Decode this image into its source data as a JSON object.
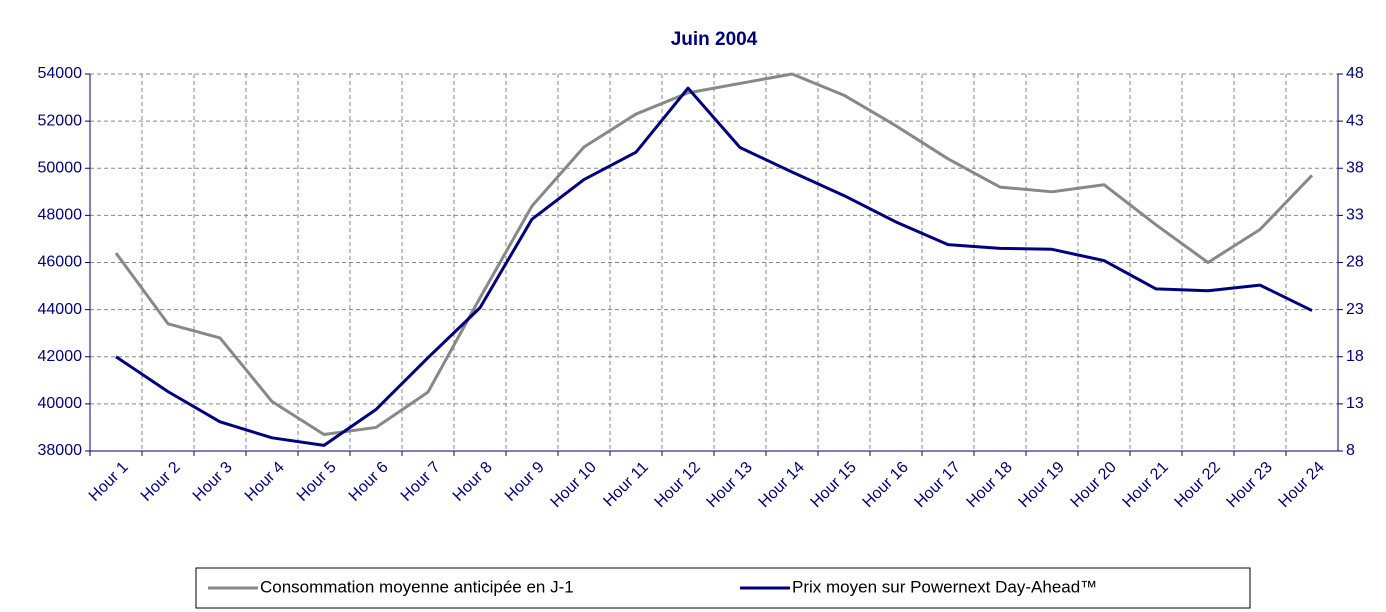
{
  "chart_data": {
    "type": "line",
    "title": "Juin 2004",
    "categories": [
      "Hour 1",
      "Hour 2",
      "Hour 3",
      "Hour 4",
      "Hour 5",
      "Hour 6",
      "Hour 7",
      "Hour 8",
      "Hour 9",
      "Hour 10",
      "Hour 11",
      "Hour 12",
      "Hour 13",
      "Hour 14",
      "Hour 15",
      "Hour 16",
      "Hour 17",
      "Hour 18",
      "Hour 19",
      "Hour 20",
      "Hour 21",
      "Hour 22",
      "Hour 23",
      "Hour 24"
    ],
    "series": [
      {
        "name": "Consommation moyenne anticipée en J-1",
        "color": "#888888",
        "axis": "y",
        "values": [
          46400,
          43400,
          42800,
          40100,
          38700,
          39000,
          40500,
          44500,
          48400,
          50900,
          52300,
          53200,
          53600,
          54000,
          53100,
          51800,
          50400,
          49200,
          49000,
          49300,
          47600,
          46000,
          47400,
          49700
        ]
      },
      {
        "name": "Prix moyen sur Powernext Day-Ahead™",
        "color": "#000080",
        "axis": "y2",
        "values": [
          18,
          14.3,
          11.1,
          9.4,
          8.6,
          12.4,
          17.9,
          23.2,
          32.6,
          36.8,
          39.7,
          46.5,
          40.2,
          37.6,
          35.1,
          32.3,
          29.9,
          29.5,
          29.4,
          28.2,
          25.2,
          25,
          25.6,
          22.9
        ]
      }
    ],
    "ylim": [
      38000,
      54000
    ],
    "yticks": [
      38000,
      40000,
      42000,
      44000,
      46000,
      48000,
      50000,
      52000,
      54000
    ],
    "y2lim": [
      8,
      48
    ],
    "y2ticks": [
      8,
      13,
      18,
      23,
      28,
      33,
      38,
      43,
      48
    ],
    "grid": true,
    "legend": "bottom"
  }
}
